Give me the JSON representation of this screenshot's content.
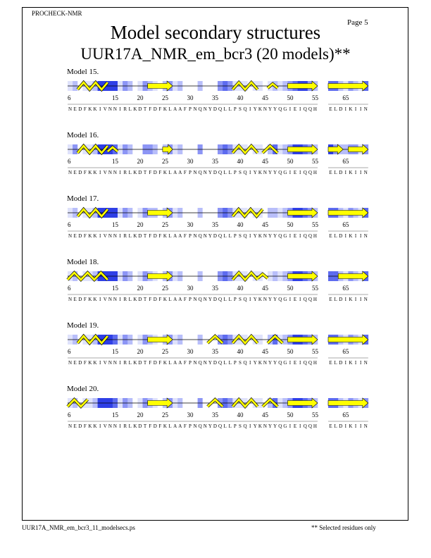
{
  "page": {
    "header_label": "PROCHECK-NMR",
    "page_number": "Page  5",
    "title": "Model secondary structures",
    "subtitle": "UUR17A_NMR_em_bcr3 (20 models)**",
    "footer_file": "UUR17A_NMR_em_bcr3_11_modelsecs.ps",
    "footer_note": "** Selected residues only"
  },
  "colors": {
    "helix_sheet_fill": "#ffff00",
    "outline": "#000000",
    "shade_levels": [
      "#ffffff",
      "#dfe2fb",
      "#b8befa",
      "#8c95f5",
      "#5d6bef",
      "#2f3fe6",
      "#1024d6"
    ]
  },
  "sequence": {
    "segment1_start": 6,
    "segment1": "NEDFKKIVNNIRLKDTFDFKLAAFPNQNYDQLLPSQIYKNYYQGIEIQQH",
    "segment2_start": 62,
    "segment2": "ELDIKIIN",
    "tick_labels": [
      {
        "residue": 6,
        "label": "6"
      },
      {
        "residue": 15,
        "label": "15"
      },
      {
        "residue": 20,
        "label": "20"
      },
      {
        "residue": 25,
        "label": "25"
      },
      {
        "residue": 30,
        "label": "30"
      },
      {
        "residue": 35,
        "label": "35"
      },
      {
        "residue": 40,
        "label": "40"
      },
      {
        "residue": 45,
        "label": "45"
      },
      {
        "residue": 50,
        "label": "50"
      },
      {
        "residue": 55,
        "label": "55"
      },
      {
        "residue": 65,
        "label": "65"
      }
    ]
  },
  "models": [
    {
      "label": "Model 15.",
      "shading": "1201125555132013210231200020003431110110121234553244213214",
      "helices": [
        [
          8,
          13
        ],
        [
          39,
          43
        ]
      ],
      "small_turns": [
        [
          46,
          47
        ]
      ],
      "strands": [
        [
          22,
          26
        ],
        [
          50,
          55
        ],
        [
          62,
          69
        ]
      ]
    },
    {
      "label": "Model 16.",
      "shading": "1301125554132003320231200030003431110110241235543253223313",
      "helices": [
        [
          8,
          13
        ],
        [
          39,
          43
        ],
        [
          45,
          47
        ]
      ],
      "small_turns": [
        [
          14,
          15
        ]
      ],
      "strands": [
        [
          25,
          26
        ],
        [
          50,
          55
        ],
        [
          62,
          64
        ],
        [
          66,
          69
        ]
      ]
    },
    {
      "label": "Model 17.",
      "shading": "1201125555132013220231200020003431110110221235543244213214",
      "helices": [
        [
          8,
          13
        ],
        [
          39,
          44
        ]
      ],
      "small_turns": [],
      "strands": [
        [
          22,
          26
        ],
        [
          50,
          55
        ],
        [
          62,
          69
        ]
      ]
    },
    {
      "label": "Model 18.",
      "shading": "1201125555132013210231200020003431110110121235543244213214",
      "helices": [
        [
          6,
          13
        ],
        [
          39,
          43
        ]
      ],
      "small_turns": [
        [
          44,
          45
        ]
      ],
      "strands": [
        [
          22,
          26
        ],
        [
          50,
          55
        ],
        [
          64,
          69
        ]
      ]
    },
    {
      "label": "Model 19.",
      "shading": "1201125554132013210231200020003431110110241235543244213214",
      "helices": [
        [
          8,
          13
        ],
        [
          34,
          36
        ],
        [
          39,
          43
        ],
        [
          46,
          48
        ]
      ],
      "small_turns": [],
      "strands": [
        [
          22,
          26
        ],
        [
          50,
          55
        ],
        [
          62,
          69
        ]
      ]
    },
    {
      "label": "Model 20.",
      "shading": "1201125554132013210231200030003431110110241235543244213213",
      "helices": [
        [
          6,
          9
        ],
        [
          34,
          36
        ],
        [
          39,
          43
        ],
        [
          45,
          47
        ]
      ],
      "small_turns": [],
      "strands": [
        [
          22,
          26
        ],
        [
          50,
          55
        ],
        [
          62,
          69
        ]
      ]
    }
  ]
}
